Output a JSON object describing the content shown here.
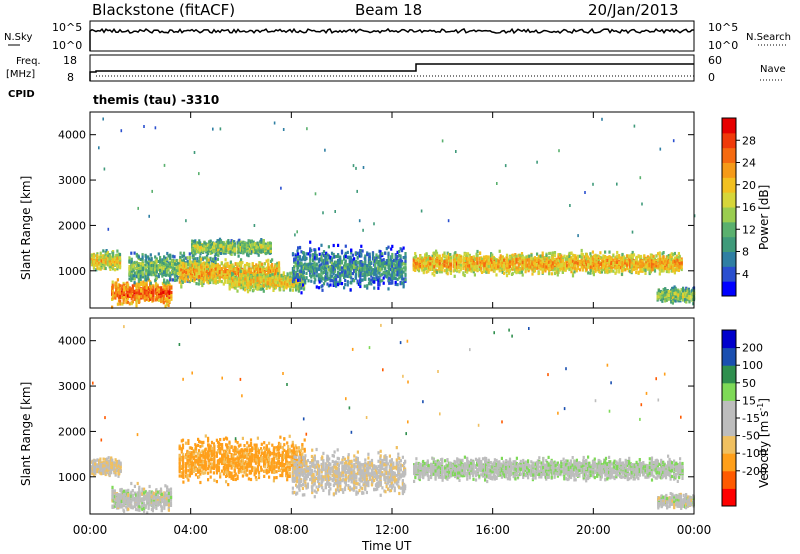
{
  "header": {
    "station": "Blackstone (fitACF)",
    "beam": "Beam 18",
    "date": "20/Jan/2013"
  },
  "noise_panel": {
    "left_label": "N.Sky",
    "left_ticks": [
      "10^5",
      "10^0"
    ],
    "right_ticks": [
      "10^5",
      "10^0"
    ],
    "right_label": "N.Search"
  },
  "freq_panel": {
    "left_label_line1": "Freq.",
    "left_label_line2": "[MHz]",
    "left_ticks": [
      "18",
      "8"
    ],
    "right_ticks": [
      "60",
      "0"
    ],
    "right_label": "Nave",
    "cpid_label": "CPID",
    "program": "themis (tau) -3310"
  },
  "colors": {
    "trace": "#000000",
    "axis": "#000000",
    "power_scale": [
      "#0000ff",
      "#2a4fcf",
      "#2f7fa3",
      "#3f9a7a",
      "#5ab06e",
      "#9acd50",
      "#d6d63a",
      "#f2c020",
      "#f59a18",
      "#f56a10",
      "#f03a0a",
      "#e60000"
    ],
    "velocity_scale": [
      "#ff0000",
      "#ff5a00",
      "#ff9f1a",
      "#f0c060",
      "#bdbdbd",
      "#bdbdbd",
      "#7ed957",
      "#2f8f4e",
      "#1a4fb0",
      "#0000cc"
    ]
  },
  "chart_data": [
    {
      "type": "heatmap",
      "title": "",
      "ylabel": "Slant Range [km]",
      "xlabel": "",
      "x_range": [
        "00:00",
        "24:00"
      ],
      "ylim": [
        180,
        4500
      ],
      "y_ticks": [
        "4000",
        "3000",
        "2000",
        "1000"
      ],
      "colorbar": {
        "label": "Power [dB]",
        "range": [
          0,
          32
        ],
        "ticks": [
          "28",
          "24",
          "20",
          "16",
          "12",
          "8",
          "4"
        ]
      },
      "echo_regions": [
        {
          "t_start": 0.0,
          "t_end": 1.2,
          "range_center": 1250,
          "range_width": 250,
          "power": 20
        },
        {
          "t_start": 0.8,
          "t_end": 3.2,
          "range_center": 550,
          "range_width": 350,
          "power": 26
        },
        {
          "t_start": 1.5,
          "t_end": 5.0,
          "range_center": 1100,
          "range_width": 400,
          "power": 14
        },
        {
          "t_start": 3.5,
          "t_end": 7.5,
          "range_center": 1000,
          "range_width": 350,
          "power": 22
        },
        {
          "t_start": 4.0,
          "t_end": 7.2,
          "range_center": 1550,
          "range_width": 200,
          "power": 16
        },
        {
          "t_start": 5.5,
          "t_end": 8.5,
          "range_center": 800,
          "range_width": 250,
          "power": 20
        },
        {
          "t_start": 8.0,
          "t_end": 12.5,
          "range_center": 1100,
          "range_width": 600,
          "power": 10
        },
        {
          "t_start": 12.8,
          "t_end": 23.5,
          "range_center": 1200,
          "range_width": 300,
          "power": 22
        },
        {
          "t_start": 22.5,
          "t_end": 24.0,
          "range_center": 500,
          "range_width": 200,
          "power": 16
        }
      ]
    },
    {
      "type": "heatmap",
      "title": "",
      "ylabel": "Slant Range [km]",
      "xlabel": "Time UT",
      "x_range": [
        "00:00",
        "24:00"
      ],
      "x_ticks": [
        "00:00",
        "04:00",
        "08:00",
        "12:00",
        "16:00",
        "20:00",
        "00:00"
      ],
      "ylim": [
        180,
        4500
      ],
      "y_ticks": [
        "4000",
        "3000",
        "2000",
        "1000"
      ],
      "colorbar": {
        "label": "Velocity [m s^-1]",
        "label_main": "Velocity [m s",
        "label_sup": "-1",
        "label_end": "]",
        "range": [
          -250,
          250
        ],
        "ticks": [
          "200",
          "100",
          "50",
          "15",
          "-15",
          "-50",
          "-100",
          "-200"
        ]
      },
      "echo_regions": [
        {
          "t_start": 0.0,
          "t_end": 1.2,
          "range_center": 1250,
          "range_width": 250,
          "velocity": -10
        },
        {
          "t_start": 0.8,
          "t_end": 3.2,
          "range_center": 550,
          "range_width": 350,
          "velocity": 0
        },
        {
          "t_start": 3.5,
          "t_end": 8.5,
          "range_center": 1400,
          "range_width": 600,
          "velocity": -60
        },
        {
          "t_start": 8.0,
          "t_end": 12.5,
          "range_center": 1100,
          "range_width": 600,
          "velocity": -5
        },
        {
          "t_start": 12.8,
          "t_end": 23.5,
          "range_center": 1200,
          "range_width": 300,
          "velocity": 5
        },
        {
          "t_start": 22.5,
          "t_end": 24.0,
          "range_center": 500,
          "range_width": 200,
          "velocity": 0
        }
      ]
    }
  ]
}
